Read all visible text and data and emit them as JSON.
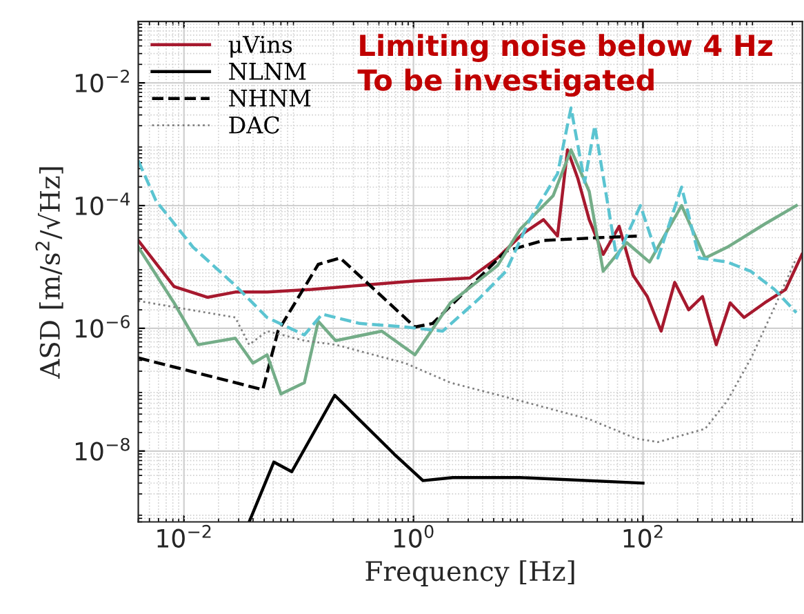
{
  "chart_data": {
    "type": "line",
    "xlabel": "Frequency [Hz]",
    "ylabel": "ASD [m/s$^{2}$/√Hz]",
    "log": "xy",
    "grid": true,
    "legend": "top left",
    "xlim": [
      0.004,
      2450
    ],
    "ylim": [
      7e-10,
      0.1
    ],
    "xticks": [
      {
        "value": 0.01,
        "label": "10$^{−2}$"
      },
      {
        "value": 1,
        "label": "10$^{0}$"
      },
      {
        "value": 100,
        "label": "10$^{2}$"
      }
    ],
    "yticks": [
      {
        "value": 1e-08,
        "label": "10$^{−8}$"
      },
      {
        "value": 1e-06,
        "label": "10$^{−6}$"
      },
      {
        "value": 0.0001,
        "label": "10$^{−4}$"
      },
      {
        "value": 0.01,
        "label": "10$^{−2}$"
      }
    ],
    "annotations": [
      "Limiting noise below 4 Hz\nTo be investigated"
    ],
    "series": [
      {
        "name": "μVins",
        "color": "#a6192e",
        "line_style": "solid",
        "x": [
          0.004,
          0.0082,
          0.016,
          0.028,
          0.053,
          0.13,
          0.34,
          1.03,
          3.1,
          5.4,
          9,
          13.6,
          18,
          22,
          27,
          34,
          45,
          62,
          82,
          109,
          144,
          189,
          250,
          330,
          435,
          575,
          760,
          1150,
          1750,
          2430
        ],
        "values": [
          2.7e-05,
          4.8e-06,
          3.2e-06,
          3.9e-06,
          3.9e-06,
          4.3e-06,
          5e-06,
          5.9e-06,
          6.6e-06,
          1.4e-05,
          3.5e-05,
          5.9e-05,
          3.2e-05,
          0.00081,
          0.00028,
          5.9e-05,
          1.6e-05,
          4.6e-05,
          7.3e-06,
          3.3e-06,
          9e-07,
          5.6e-06,
          2e-06,
          3.3e-06,
          5.4e-07,
          2.6e-06,
          1.5e-06,
          2.6e-06,
          4.3e-06,
          1.6e-05
        ]
      },
      {
        "name": "NLNM",
        "color": "#000000",
        "line_style": "solid",
        "x": [
          0.037,
          0.0607,
          0.087,
          0.206,
          0.68,
          1.21,
          2.2,
          8.5,
          100
        ],
        "values": [
          7e-10,
          6.6e-09,
          4.6e-09,
          8.1e-08,
          8.9e-09,
          3.3e-09,
          3.7e-09,
          3.7e-09,
          3e-09
        ]
      },
      {
        "name": "NHNM",
        "color": "#000000",
        "line_style": "dashed",
        "x": [
          0.004,
          0.0486,
          0.066,
          0.148,
          0.23,
          1.03,
          1.47,
          6.4,
          13.5,
          41,
          95
        ],
        "values": [
          3.3e-07,
          1e-07,
          9e-07,
          1.1e-05,
          1.4e-05,
          1.05e-06,
          1.2e-06,
          1.8e-05,
          2.7e-05,
          3e-05,
          3.2e-05
        ]
      },
      {
        "color": "#74ad88",
        "line_style": "solid",
        "x": [
          0.004,
          0.0082,
          0.0133,
          0.028,
          0.04,
          0.053,
          0.07,
          0.112,
          0.148,
          0.21,
          0.53,
          1.03,
          2.1,
          5.4,
          8.5,
          16.5,
          23.6,
          34,
          45,
          72,
          114,
          217,
          348,
          543,
          1150,
          2170
        ],
        "values": [
          2.1e-05,
          2.6e-06,
          5.4e-07,
          6.9e-07,
          2.7e-07,
          3.7e-07,
          8.5e-08,
          1.3e-07,
          1.3e-06,
          6.3e-07,
          9e-07,
          3.7e-07,
          2.6e-06,
          1.05e-05,
          4.1e-05,
          0.000145,
          0.00081,
          0.00017,
          8.5e-06,
          2.5e-05,
          1.2e-05,
          0.0001,
          1.4e-05,
          2.1e-05,
          5e-05,
          0.0001
        ]
      },
      {
        "name": "DAC",
        "color": "#808080",
        "line_style": "dotted",
        "x": [
          0.004,
          0.028,
          0.037,
          0.053,
          0.112,
          0.21,
          0.85,
          2.1,
          8.5,
          34,
          87,
          135,
          348,
          543,
          870,
          1400,
          2170
        ],
        "values": [
          2.8e-06,
          1.5e-06,
          5.4e-07,
          9e-07,
          6.3e-07,
          5.4e-07,
          2.7e-07,
          1.3e-07,
          6.6e-08,
          3.3e-08,
          1.6e-08,
          1.4e-08,
          2.3e-08,
          6.6e-08,
          3.2e-07,
          2.2e-06,
          1.4e-05
        ]
      },
      {
        "color": "#5bc4d1",
        "line_style": "dashed",
        "x": [
          0.004,
          0.0057,
          0.012,
          0.028,
          0.053,
          0.112,
          0.16,
          0.34,
          0.85,
          1.8,
          3.7,
          6.4,
          10.3,
          18,
          23.6,
          31,
          38,
          59,
          95,
          135,
          217,
          310,
          543,
          870,
          1400,
          2170
        ],
        "values": [
          0.00054,
          0.00012,
          2.1e-05,
          5e-06,
          1.5e-06,
          7.8e-07,
          1.7e-06,
          1.2e-06,
          1.05e-06,
          9e-07,
          3e-06,
          8.5e-06,
          5.9e-05,
          0.00033,
          0.0039,
          0.00024,
          0.002,
          1.4e-05,
          0.0001,
          1.4e-05,
          0.0002,
          1.4e-05,
          1.2e-05,
          8.5e-06,
          4.3e-06,
          1.8e-06
        ]
      }
    ]
  }
}
